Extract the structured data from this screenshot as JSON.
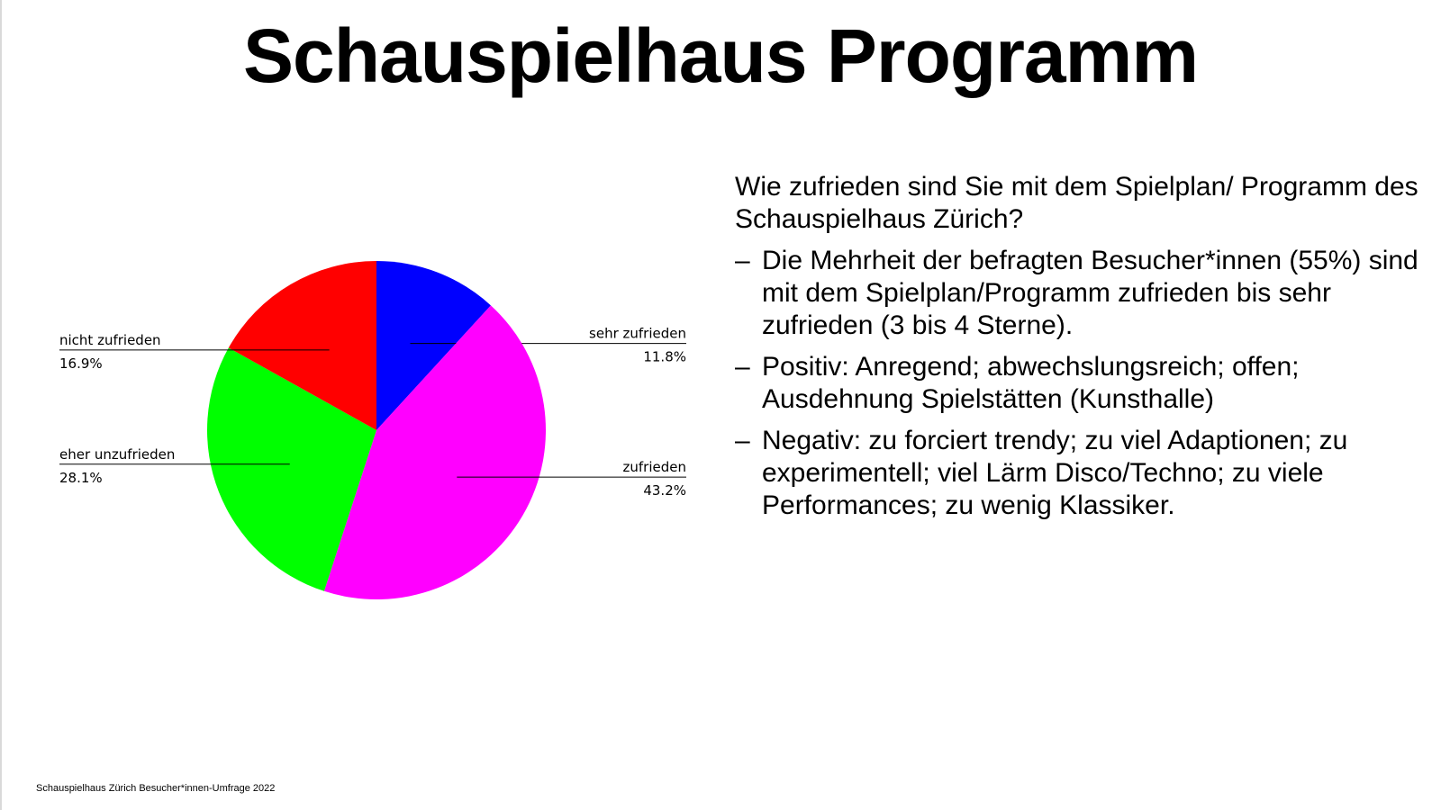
{
  "page": {
    "title": "Schauspielhaus Programm",
    "footer": "Schauspielhaus Zürich Besucher*innen-Umfrage 2022"
  },
  "text": {
    "question": "Wie zufrieden sind Sie mit dem Spielplan/ Programm des Schauspielhaus Zürich?",
    "dash": "–",
    "bullets": [
      "Die Mehrheit der befragten Besucher*innen (55%) sind mit dem Spielplan/Programm zufrieden bis sehr zufrieden (3 bis 4 Sterne).",
      "Positiv: Anregend; abwechslungsreich; offen; Ausdehnung Spielstätten (Kunsthalle)",
      "Negativ: zu forciert trendy; zu viel Adaptionen; zu experimentell; viel Lärm Disco/Techno; zu viele Performances; zu wenig Klassiker."
    ]
  },
  "chart_data": {
    "type": "pie",
    "title": "",
    "slices": [
      {
        "label": "sehr zufrieden",
        "value": 11.8,
        "display": "11.8%",
        "color": "#0000ff",
        "side": "right"
      },
      {
        "label": "zufrieden",
        "value": 43.2,
        "display": "43.2%",
        "color": "#ff00ff",
        "side": "right"
      },
      {
        "label": "eher unzufrieden",
        "value": 28.1,
        "display": "28.1%",
        "color": "#00ff00",
        "side": "left"
      },
      {
        "label": "nicht zufrieden",
        "value": 16.9,
        "display": "16.9%",
        "color": "#ff0000",
        "side": "left"
      }
    ]
  }
}
